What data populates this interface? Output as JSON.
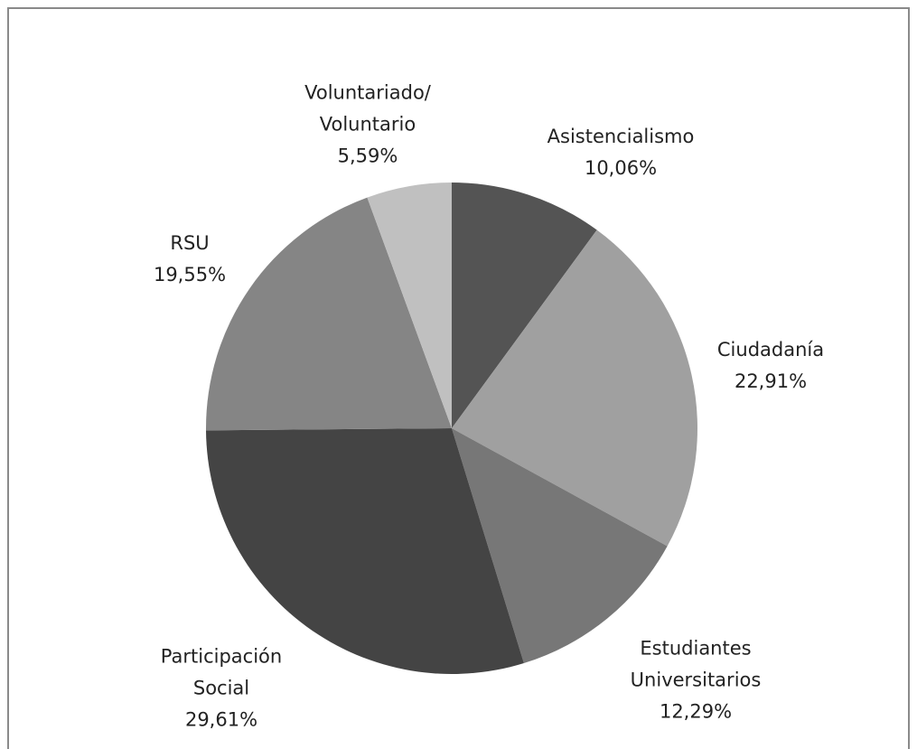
{
  "chart_data": {
    "type": "pie",
    "categories": [
      "Asistencialismo",
      "Ciudadanía",
      "Estudiantes\nUniversitarios",
      "Participación\nSocial",
      "RSU",
      "Voluntariado/\nVoluntario"
    ],
    "values": [
      10.06,
      22.91,
      12.29,
      29.61,
      19.55,
      5.59
    ],
    "value_labels": [
      "10,06%",
      "22,91%",
      "12,29%",
      "29,61%",
      "19,55%",
      "5,59%"
    ],
    "colors": [
      "#545454",
      "#a0a0a0",
      "#777777",
      "#444444",
      "#858585",
      "#c0c0c0"
    ]
  }
}
